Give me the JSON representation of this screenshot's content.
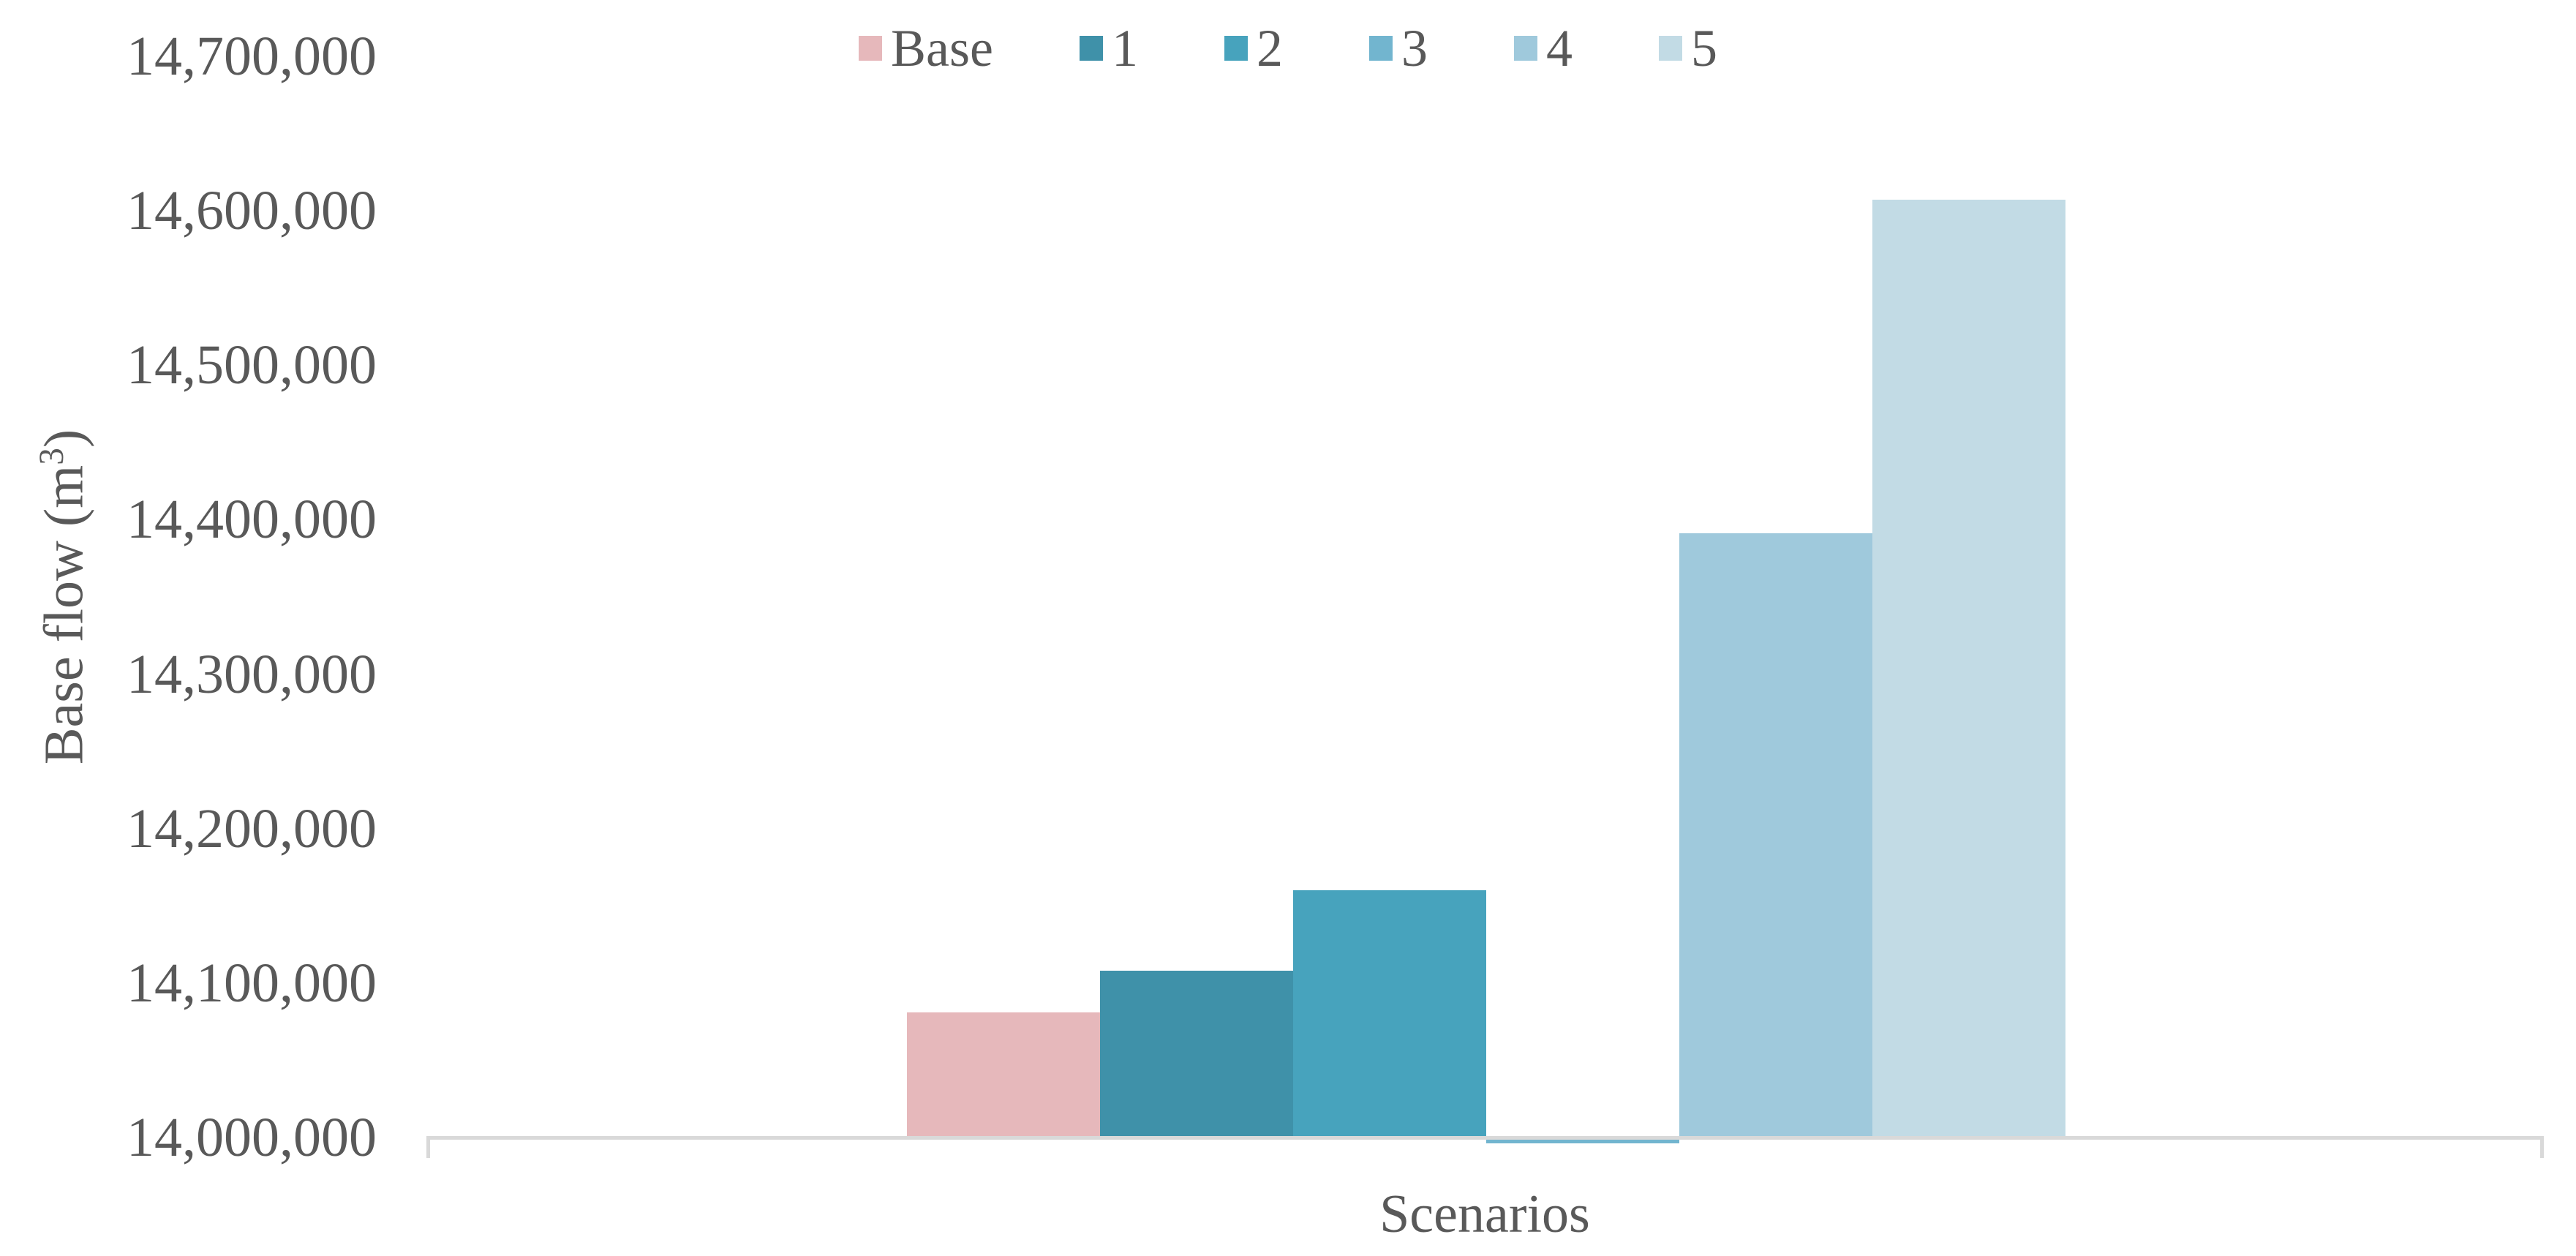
{
  "chart_data": {
    "type": "bar",
    "title": "",
    "xlabel": "Scenarios",
    "ylabel": "Base flow (m³)",
    "ylabel_prefix": "Base flow (m",
    "ylabel_sup": "3",
    "ylabel_suffix": ")",
    "categories": [
      "Scenarios"
    ],
    "series": [
      {
        "name": "Base",
        "value": 14081000,
        "color": "#e6b8bb"
      },
      {
        "name": "1",
        "value": 14108000,
        "color": "#3f91a9"
      },
      {
        "name": "2",
        "value": 14160000,
        "color": "#47a3bd"
      },
      {
        "name": "3",
        "value": 13996000,
        "color": "#72b5cf"
      },
      {
        "name": "4",
        "value": 14391000,
        "color": "#9fc9dc"
      },
      {
        "name": "5",
        "value": 14607000,
        "color": "#c2dbe5"
      }
    ],
    "ylim": [
      14000000,
      14700000
    ],
    "ytick_step": 100000,
    "ytick_labels": [
      "14,000,000",
      "14,100,000",
      "14,200,000",
      "14,300,000",
      "14,400,000",
      "14,500,000",
      "14,600,000",
      "14,700,000"
    ],
    "grid": false,
    "legend_position": "top-center",
    "axis_color": "#d9d9d9",
    "text_color": "#595959"
  }
}
